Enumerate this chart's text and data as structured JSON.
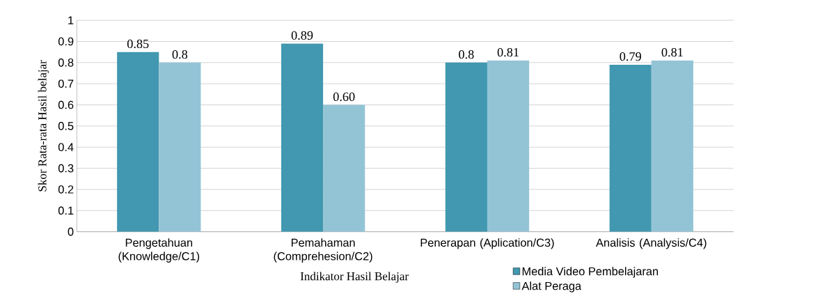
{
  "chart_data": {
    "type": "bar",
    "xlabel": "Indikator Hasil Belajar",
    "ylabel": "Skor Rata-rata Hasil belajar",
    "categories": [
      "Pengetahuan (Knowledge/C1)",
      "Pemahaman (Comprehesion/C2)",
      "Penerapan (Aplication/C3)",
      "Analisis (Analysis/C4)"
    ],
    "series": [
      {
        "name": "Media Video Pembelajaran",
        "color": "#4198b0",
        "values": [
          0.85,
          0.89,
          0.8,
          0.79
        ],
        "value_labels": [
          "0.85",
          "0.89",
          "0.8",
          "0.79"
        ]
      },
      {
        "name": "Alat Peraga",
        "color": "#93c4d6",
        "values": [
          0.8,
          0.6,
          0.81,
          0.81
        ],
        "value_labels": [
          "0.8",
          "0.60",
          "0.81",
          "0.81"
        ]
      }
    ],
    "ylim": [
      0,
      1
    ],
    "yticks": [
      0,
      0.1,
      0.2,
      0.3,
      0.4,
      0.5,
      0.6,
      0.7,
      0.8,
      0.9,
      1
    ],
    "grid": "y",
    "legend": "bottom right"
  }
}
